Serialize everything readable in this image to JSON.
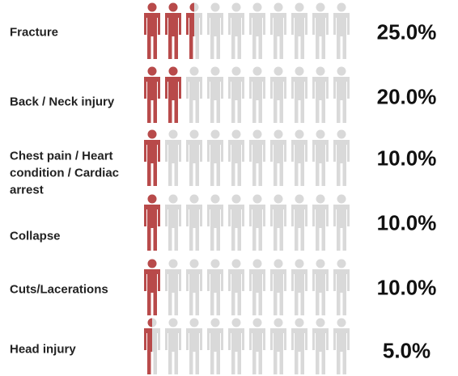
{
  "chart_data": {
    "type": "pictograph",
    "categories": [
      "Fracture",
      "Back / Neck injury",
      "Chest pain / Heart condition / Cardiac arrest",
      "Collapse",
      "Cuts/Lacerations",
      "Head injury"
    ],
    "values": [
      25,
      20,
      10,
      10,
      10,
      5
    ],
    "value_labels": [
      "25.0%",
      "20.0%",
      "10.0%",
      "10.0%",
      "10.0%",
      "5.0%"
    ],
    "xlim": [
      0,
      100
    ],
    "icons": 10,
    "color": "#b84a4a",
    "empty_color": "#d9d9d9"
  }
}
